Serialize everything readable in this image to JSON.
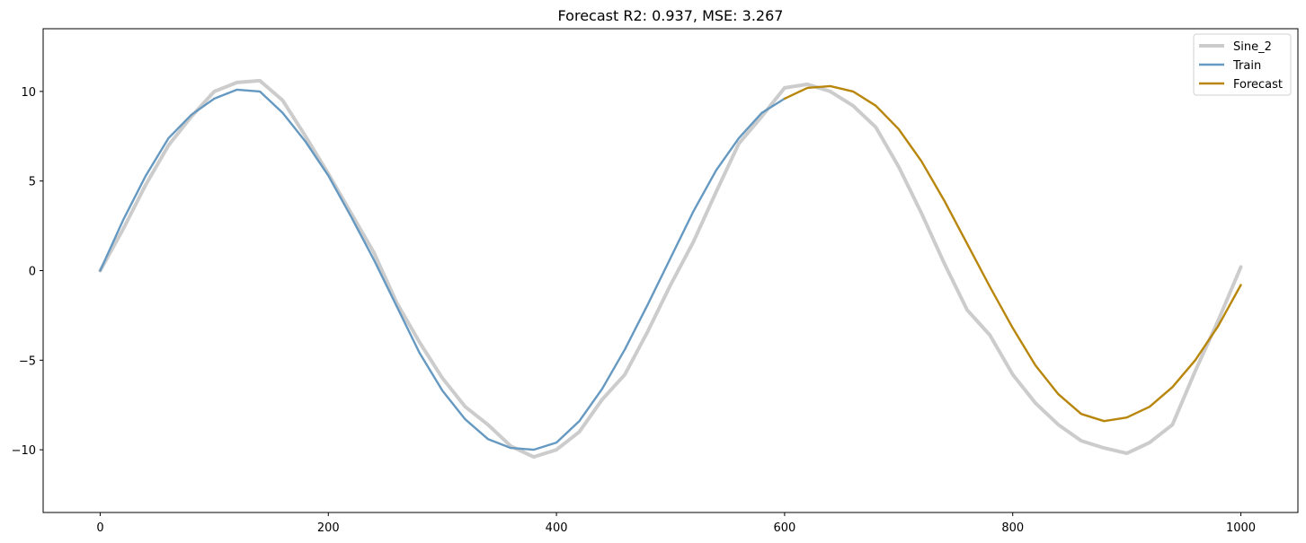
{
  "chart_data": {
    "type": "line",
    "title": "Forecast R2: 0.937, MSE: 3.267",
    "xlabel": "",
    "ylabel": "",
    "xlim": [
      -50,
      1050
    ],
    "ylim": [
      -13.5,
      13.5
    ],
    "xticks": [
      0,
      200,
      400,
      600,
      800,
      1000
    ],
    "yticks": [
      -10,
      -5,
      0,
      5,
      10
    ],
    "xtick_labels": [
      "0",
      "200",
      "400",
      "600",
      "800",
      "1000"
    ],
    "ytick_labels": [
      "−10",
      "−5",
      "0",
      "5",
      "10"
    ],
    "grid": false,
    "legend_position": "top-right",
    "series": [
      {
        "name": "Sine_2",
        "color": "#cccccc",
        "x": [
          0,
          20,
          40,
          60,
          80,
          100,
          120,
          140,
          160,
          180,
          200,
          220,
          240,
          260,
          280,
          300,
          320,
          340,
          360,
          380,
          400,
          420,
          440,
          460,
          480,
          500,
          520,
          540,
          560,
          580,
          600,
          620,
          640,
          660,
          680,
          700,
          720,
          740,
          760,
          780,
          800,
          820,
          840,
          860,
          880,
          900,
          920,
          940,
          960,
          980,
          1000
        ],
        "values": [
          0.0,
          2.3,
          4.8,
          7.0,
          8.6,
          10.0,
          10.5,
          10.6,
          9.5,
          7.5,
          5.4,
          3.2,
          1.0,
          -1.8,
          -4.0,
          -6.0,
          -7.6,
          -8.6,
          -9.8,
          -10.4,
          -10.0,
          -9.0,
          -7.2,
          -5.8,
          -3.4,
          -0.8,
          1.6,
          4.4,
          7.1,
          8.6,
          10.2,
          10.4,
          10.0,
          9.2,
          8.0,
          5.8,
          3.2,
          0.4,
          -2.2,
          -3.6,
          -5.8,
          -7.4,
          -8.6,
          -9.5,
          -9.9,
          -10.2,
          -9.6,
          -8.6,
          -5.6,
          -2.8,
          0.2
        ]
      },
      {
        "name": "Train",
        "color": "#6699c1",
        "x": [
          0,
          20,
          40,
          60,
          80,
          100,
          120,
          140,
          160,
          180,
          200,
          220,
          240,
          260,
          280,
          300,
          320,
          340,
          360,
          380,
          400,
          420,
          440,
          460,
          480,
          500,
          520,
          540,
          560,
          580,
          600
        ],
        "values": [
          0.0,
          2.8,
          5.3,
          7.4,
          8.7,
          9.6,
          10.1,
          10.0,
          8.8,
          7.2,
          5.3,
          3.0,
          0.6,
          -2.0,
          -4.6,
          -6.7,
          -8.3,
          -9.4,
          -9.9,
          -10.0,
          -9.6,
          -8.4,
          -6.6,
          -4.4,
          -1.9,
          0.7,
          3.3,
          5.6,
          7.4,
          8.8,
          9.6
        ]
      },
      {
        "name": "Forecast",
        "color": "#b8860b",
        "x": [
          600,
          620,
          640,
          660,
          680,
          700,
          720,
          740,
          760,
          780,
          800,
          820,
          840,
          860,
          880,
          900,
          920,
          940,
          960,
          980,
          1000
        ],
        "values": [
          9.6,
          10.2,
          10.3,
          10.0,
          9.2,
          7.9,
          6.1,
          3.9,
          1.5,
          -0.9,
          -3.2,
          -5.3,
          -6.9,
          -8.0,
          -8.4,
          -8.2,
          -7.6,
          -6.5,
          -5.0,
          -3.1,
          -0.8
        ]
      }
    ]
  }
}
